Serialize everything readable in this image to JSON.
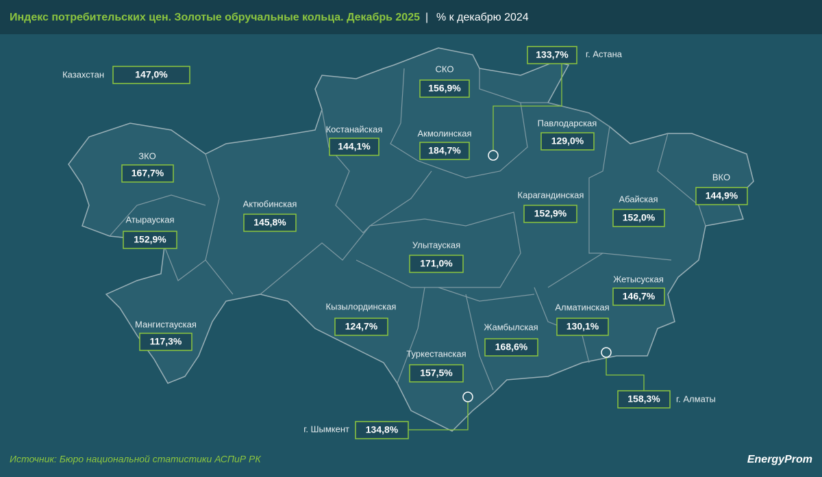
{
  "header": {
    "title": "Индекс потребительских цен. Золотые обручальные кольца. Декабрь 2025",
    "subtitle": "% к декабрю 2024"
  },
  "regions": [
    {
      "name": "Казахстан",
      "value": "147,0%"
    },
    {
      "name": "СКО",
      "value": "156,9%"
    },
    {
      "name": "г. Астана",
      "value": "133,7%"
    },
    {
      "name": "Костанайская",
      "value": "144,1%"
    },
    {
      "name": "Акмолинская",
      "value": "184,7%"
    },
    {
      "name": "Павлодарская",
      "value": "129,0%"
    },
    {
      "name": "ЗКО",
      "value": "167,7%"
    },
    {
      "name": "ВКО",
      "value": "144,9%"
    },
    {
      "name": "Актюбинская",
      "value": "145,8%"
    },
    {
      "name": "Карагандинская",
      "value": "152,9%"
    },
    {
      "name": "Абайская",
      "value": "152,0%"
    },
    {
      "name": "Атырауская",
      "value": "152,9%"
    },
    {
      "name": "Улытауская",
      "value": "171,0%"
    },
    {
      "name": "Жетысуская",
      "value": "146,7%"
    },
    {
      "name": "Кызылординская",
      "value": "124,7%"
    },
    {
      "name": "Алматинская",
      "value": "130,1%"
    },
    {
      "name": "Жамбылская",
      "value": "168,6%"
    },
    {
      "name": "Мангистауская",
      "value": "117,3%"
    },
    {
      "name": "Туркестанская",
      "value": "157,5%"
    },
    {
      "name": "г. Алматы",
      "value": "158,3%"
    },
    {
      "name": "г. Шымкент",
      "value": "134,8%"
    }
  ],
  "footer": {
    "source": "Источник: Бюро национальной статистики АСПиР РК",
    "logo": "EnergyProm"
  }
}
